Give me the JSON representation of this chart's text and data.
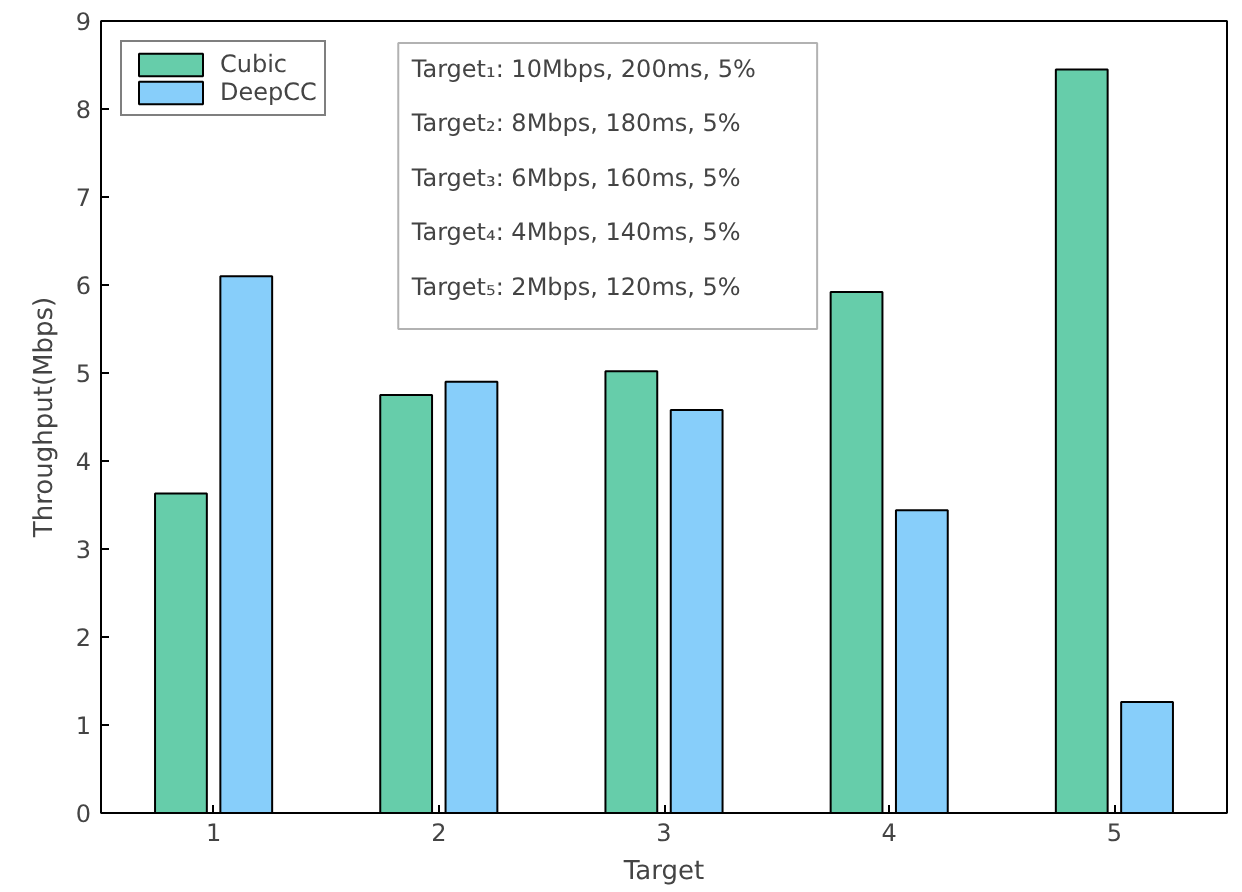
{
  "chart_data": {
    "type": "bar",
    "xlabel": "Target",
    "ylabel": "Throughput(Mbps)",
    "categories": [
      "1",
      "2",
      "3",
      "4",
      "5"
    ],
    "series": [
      {
        "name": "Cubic",
        "color": "#66cdaa",
        "values": [
          3.63,
          4.75,
          5.02,
          5.92,
          8.45
        ]
      },
      {
        "name": "DeepCC",
        "color": "#87cefa",
        "values": [
          6.1,
          4.9,
          4.58,
          3.44,
          1.26
        ]
      }
    ],
    "ylim": [
      0,
      9
    ],
    "yticks": [
      0,
      1,
      2,
      3,
      4,
      5,
      6,
      7,
      8,
      9
    ],
    "grid": false,
    "legend": "top left",
    "annotations": [
      "Target₁: 10Mbps, 200ms, 5%",
      "Target₂:   8Mbps, 180ms, 5%",
      "Target₃:   6Mbps, 160ms, 5%",
      "Target₄:   4Mbps, 140ms, 5%",
      "Target₅:   2Mbps, 120ms, 5%"
    ]
  }
}
